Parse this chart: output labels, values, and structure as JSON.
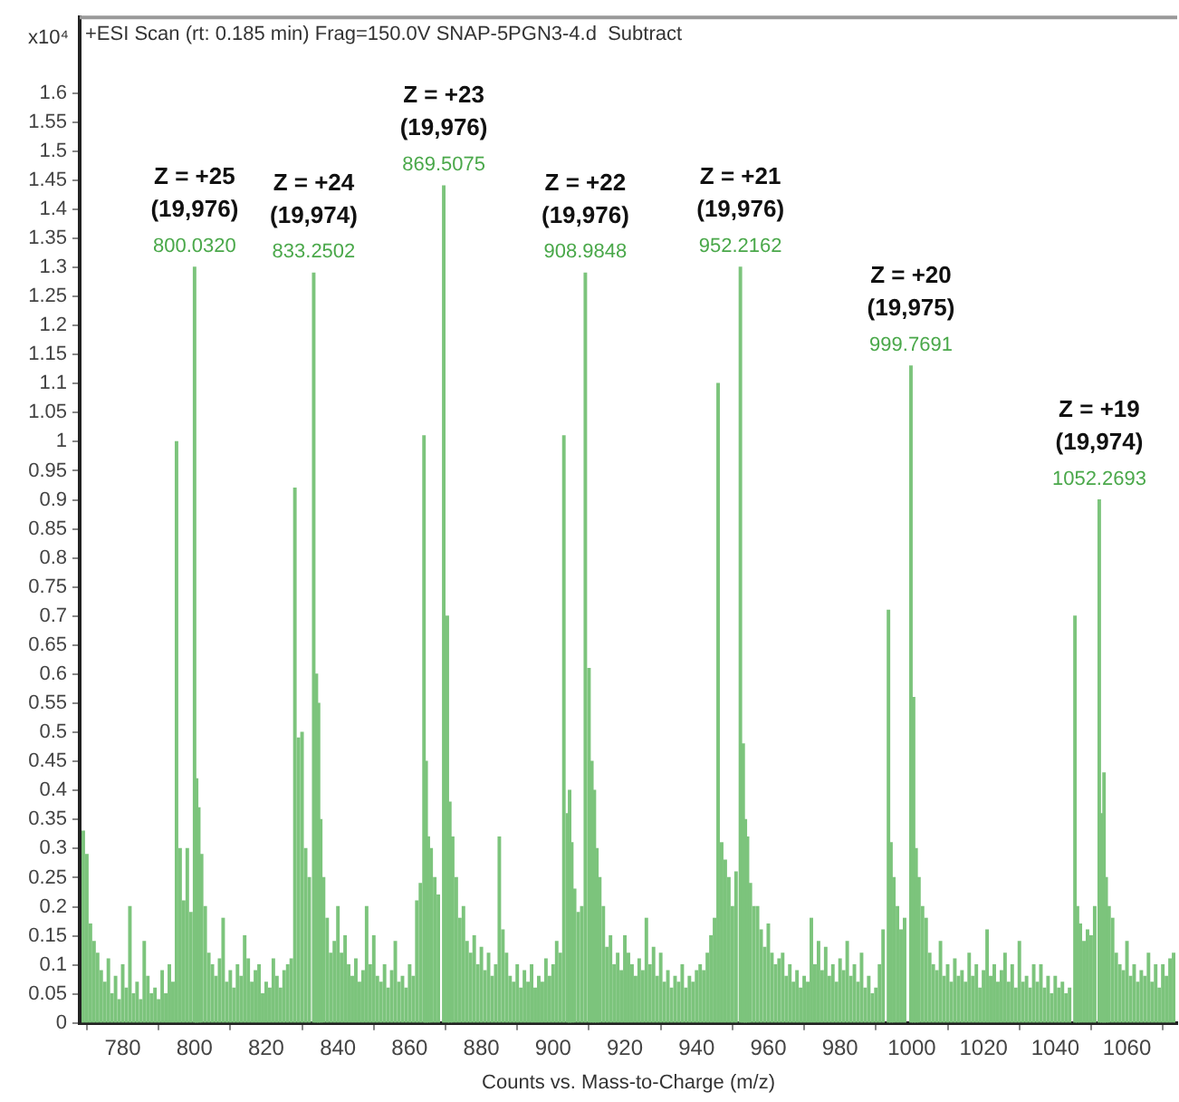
{
  "chart_data": {
    "type": "bar",
    "title": "+ESI Scan (rt: 0.185 min) Frag=150.0V SNAP-5PGN3-4.d  Subtract",
    "xlabel": "Counts vs. Mass-to-Charge (m/z)",
    "ylabel": "x10⁴",
    "xlim": [
      768,
      1074
    ],
    "xticks": [
      780,
      800,
      820,
      840,
      860,
      880,
      900,
      920,
      940,
      960,
      980,
      1000,
      1020,
      1040,
      1060
    ],
    "ylim": [
      0,
      1.73
    ],
    "yticks": [
      0,
      0.05,
      0.1,
      0.15,
      0.2,
      0.25,
      0.3,
      0.35,
      0.4,
      0.45,
      0.5,
      0.55,
      0.6,
      0.65,
      0.7,
      0.75,
      0.8,
      0.85,
      0.9,
      0.95,
      1,
      1.05,
      1.1,
      1.15,
      1.2,
      1.25,
      1.3,
      1.35,
      1.4,
      1.45,
      1.5,
      1.55,
      1.6
    ],
    "grid": false,
    "legend": false,
    "series": [
      {
        "color": "#7cc47c",
        "x": [
          769,
          770,
          771,
          772,
          773,
          774,
          775,
          776,
          777,
          778,
          779,
          780,
          781,
          782,
          783,
          784,
          785,
          786,
          787,
          788,
          789,
          790,
          791,
          792,
          793,
          794,
          795,
          796,
          797,
          798,
          799,
          800.6,
          801.2,
          802,
          803,
          804,
          805,
          806,
          807,
          808,
          809,
          810,
          811,
          812,
          813,
          814,
          815,
          816,
          817,
          818,
          819,
          820,
          821,
          822,
          823,
          824,
          825,
          826,
          827,
          828,
          829,
          830,
          831,
          832,
          834,
          834.6,
          835.2,
          836,
          837,
          838,
          839,
          840,
          841,
          842,
          843,
          844,
          845,
          846,
          847,
          848,
          849,
          850,
          851,
          852,
          853,
          854,
          855,
          856,
          857,
          858,
          859,
          860,
          861,
          862,
          863,
          864,
          864.6,
          865.2,
          866,
          867,
          868,
          870.5,
          871.2,
          872,
          873,
          874,
          875,
          876,
          877,
          878,
          879,
          880,
          881,
          882,
          883,
          884,
          885,
          886,
          887,
          888,
          889,
          890,
          891,
          892,
          893,
          894,
          895,
          896,
          897,
          898,
          899,
          900,
          901,
          902,
          903,
          904,
          904.6,
          905.2,
          906,
          907,
          908,
          910,
          910.8,
          911.5,
          912.2,
          913,
          914,
          915,
          916,
          917,
          918,
          919,
          920,
          921,
          922,
          923,
          924,
          925,
          926,
          927,
          928,
          929,
          930,
          931,
          932,
          933,
          934,
          935,
          936,
          937,
          938,
          939,
          940,
          941,
          942,
          943,
          944,
          945,
          946,
          947,
          948,
          949,
          950,
          951,
          953,
          953.6,
          954.2,
          955,
          956,
          957,
          958,
          959,
          960,
          961,
          962,
          963,
          964,
          965,
          966,
          967,
          968,
          969,
          970,
          971,
          972,
          973,
          974,
          975,
          976,
          977,
          978,
          979,
          980,
          981,
          982,
          983,
          984,
          985,
          986,
          987,
          988,
          989,
          990,
          991,
          992,
          993.5,
          994.2,
          995,
          996,
          997,
          998,
          1000.5,
          1001.2,
          1002,
          1003,
          1004,
          1005,
          1006,
          1007,
          1008,
          1009,
          1010,
          1011,
          1012,
          1013,
          1014,
          1015,
          1016,
          1017,
          1018,
          1019,
          1020,
          1021,
          1022,
          1023,
          1024,
          1025,
          1026,
          1027,
          1028,
          1029,
          1030,
          1031,
          1032,
          1033,
          1034,
          1035,
          1036,
          1037,
          1038,
          1039,
          1040,
          1041,
          1042,
          1043,
          1044,
          1045.5,
          1046.2,
          1047,
          1048,
          1049,
          1050,
          1051,
          1053,
          1053.6,
          1054.2,
          1055,
          1056,
          1057,
          1058,
          1059,
          1060,
          1061,
          1062,
          1063,
          1064,
          1065,
          1066,
          1067,
          1068,
          1069,
          1070,
          1071,
          1072,
          1073
        ],
        "values": [
          0.33,
          0.29,
          0.17,
          0.14,
          0.12,
          0.09,
          0.07,
          0.11,
          0.05,
          0.08,
          0.04,
          0.1,
          0.06,
          0.2,
          0.05,
          0.07,
          0.04,
          0.14,
          0.08,
          0.05,
          0.06,
          0.04,
          0.09,
          0.05,
          0.1,
          0.07,
          1.0,
          0.3,
          0.21,
          0.3,
          0.19,
          0.42,
          0.37,
          0.29,
          0.2,
          0.12,
          0.1,
          0.08,
          0.11,
          0.18,
          0.07,
          0.09,
          0.06,
          0.1,
          0.08,
          0.15,
          0.11,
          0.07,
          0.09,
          0.1,
          0.05,
          0.07,
          0.06,
          0.11,
          0.08,
          0.06,
          0.09,
          0.1,
          0.11,
          0.92,
          0.49,
          0.5,
          0.3,
          0.25,
          0.6,
          0.55,
          0.35,
          0.25,
          0.18,
          0.12,
          0.14,
          0.2,
          0.12,
          0.15,
          0.1,
          0.08,
          0.11,
          0.07,
          0.09,
          0.2,
          0.1,
          0.15,
          0.08,
          0.07,
          0.1,
          0.06,
          0.09,
          0.14,
          0.07,
          0.08,
          0.06,
          0.1,
          0.08,
          0.21,
          0.24,
          1.01,
          0.45,
          0.32,
          0.3,
          0.25,
          0.22,
          0.7,
          0.38,
          0.32,
          0.25,
          0.18,
          0.2,
          0.14,
          0.12,
          0.15,
          0.1,
          0.13,
          0.09,
          0.12,
          0.08,
          0.1,
          0.32,
          0.16,
          0.12,
          0.08,
          0.07,
          0.1,
          0.06,
          0.09,
          0.07,
          0.1,
          0.06,
          0.08,
          0.07,
          0.11,
          0.08,
          0.1,
          0.14,
          0.12,
          1.01,
          0.36,
          0.4,
          0.31,
          0.23,
          0.19,
          0.2,
          0.61,
          0.45,
          0.4,
          0.3,
          0.25,
          0.2,
          0.13,
          0.15,
          0.1,
          0.12,
          0.09,
          0.15,
          0.12,
          0.1,
          0.08,
          0.11,
          0.09,
          0.18,
          0.1,
          0.13,
          0.08,
          0.12,
          0.07,
          0.09,
          0.06,
          0.08,
          0.07,
          0.1,
          0.06,
          0.08,
          0.07,
          0.09,
          0.1,
          0.09,
          0.12,
          0.15,
          0.18,
          1.1,
          0.31,
          0.28,
          0.25,
          0.2,
          0.26,
          0.48,
          0.35,
          0.32,
          0.24,
          0.2,
          0.2,
          0.16,
          0.13,
          0.17,
          0.12,
          0.1,
          0.11,
          0.12,
          0.08,
          0.1,
          0.07,
          0.09,
          0.06,
          0.08,
          0.07,
          0.18,
          0.1,
          0.14,
          0.09,
          0.13,
          0.08,
          0.1,
          0.07,
          0.11,
          0.09,
          0.14,
          0.08,
          0.1,
          0.07,
          0.12,
          0.06,
          0.08,
          0.05,
          0.06,
          0.1,
          0.16,
          0.71,
          0.31,
          0.25,
          0.2,
          0.16,
          0.18,
          0.56,
          0.3,
          0.25,
          0.2,
          0.18,
          0.12,
          0.1,
          0.09,
          0.14,
          0.08,
          0.1,
          0.07,
          0.11,
          0.08,
          0.09,
          0.07,
          0.12,
          0.08,
          0.1,
          0.06,
          0.09,
          0.16,
          0.08,
          0.1,
          0.07,
          0.09,
          0.12,
          0.07,
          0.1,
          0.06,
          0.14,
          0.07,
          0.08,
          0.06,
          0.1,
          0.07,
          0.1,
          0.06,
          0.08,
          0.05,
          0.08,
          0.06,
          0.07,
          0.05,
          0.06,
          0.7,
          0.2,
          0.17,
          0.14,
          0.16,
          0.15,
          0.2,
          0.36,
          0.43,
          0.25,
          0.2,
          0.18,
          0.12,
          0.1,
          0.09,
          0.14,
          0.08,
          0.1,
          0.07,
          0.09,
          0.08,
          0.12,
          0.07,
          0.1,
          0.06,
          0.1,
          0.08,
          0.11,
          0.12
        ]
      },
      {
        "color": "#7cc47c",
        "x": [
          800.032,
          833.2502,
          869.5075,
          908.9848,
          952.2162,
          999.7691,
          1052.2693
        ],
        "values": [
          1.3,
          1.29,
          1.44,
          1.29,
          1.3,
          1.13,
          0.9
        ]
      }
    ],
    "annotations": [
      {
        "text": "Z = +25\n(19,976)\n800.0320",
        "x": 800.032,
        "y": 1.3
      },
      {
        "text": "Z = +24\n(19,974)\n833.2502",
        "x": 833.2502,
        "y": 1.29
      },
      {
        "text": "Z = +23\n(19,976)\n869.5075",
        "x": 869.5075,
        "y": 1.44
      },
      {
        "text": "Z = +22\n(19,976)\n908.9848",
        "x": 908.9848,
        "y": 1.29
      },
      {
        "text": "Z = +21\n(19,976)\n952.2162",
        "x": 952.2162,
        "y": 1.3
      },
      {
        "text": "Z = +20\n(19,975)\n999.7691",
        "x": 999.7691,
        "y": 1.13
      },
      {
        "text": "Z = +19\n(19,974)\n1052.2693",
        "x": 1052.2693,
        "y": 0.9
      }
    ]
  }
}
